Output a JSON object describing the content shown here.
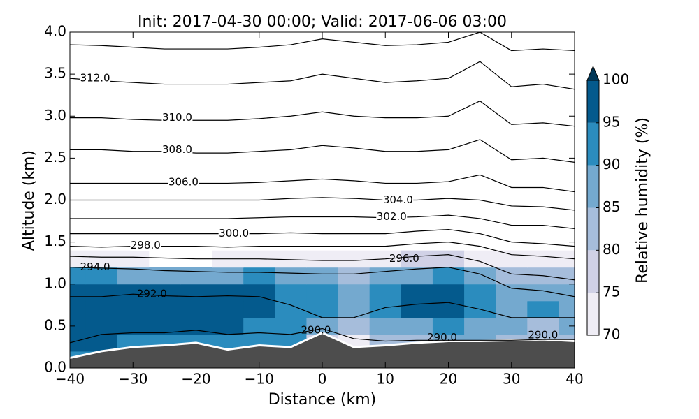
{
  "chart_data": {
    "type": "contour",
    "title": "Init: 2017-04-30 00:00; Valid: 2017-06-06 03:00",
    "x_label": "Distance (km)",
    "y_label": "Altitude (km)",
    "xlim": [
      -40,
      40
    ],
    "ylim": [
      0,
      4
    ],
    "xticks": [
      {
        "value": -40,
        "label": "−40"
      },
      {
        "value": -30,
        "label": "−30"
      },
      {
        "value": -20,
        "label": "−20"
      },
      {
        "value": -10,
        "label": "−10"
      },
      0,
      10,
      20,
      30,
      40
    ],
    "yticks": [
      {
        "value": 0,
        "label": "0.0"
      },
      0.5,
      {
        "value": 1,
        "label": "1.0"
      },
      1.5,
      {
        "value": 2,
        "label": "2.0"
      },
      2.5,
      {
        "value": 3,
        "label": "3.0"
      },
      3.5,
      {
        "value": 4,
        "label": "4.0"
      }
    ],
    "x": [
      -40,
      -35,
      -30,
      -25,
      -20,
      -15,
      -10,
      -5,
      0,
      5,
      10,
      15,
      20,
      25,
      30,
      35,
      40
    ],
    "humidity": {
      "z": [
        0.1,
        0.3,
        0.5,
        0.7,
        0.9,
        1.1,
        1.3
      ],
      "values": [
        [
          93,
          92,
          91,
          90,
          90,
          92,
          90,
          88,
          80,
          80,
          82,
          84,
          85,
          86,
          86,
          85,
          85
        ],
        [
          96,
          95,
          93,
          92,
          94,
          93,
          92,
          90,
          78,
          74,
          80,
          84,
          86,
          85,
          84,
          84,
          84
        ],
        [
          96,
          96,
          95,
          96,
          95,
          95,
          94,
          92,
          86,
          83,
          86,
          88,
          90,
          88,
          86,
          84,
          86
        ],
        [
          97,
          96,
          97,
          95,
          96,
          95,
          95,
          93,
          91,
          86,
          92,
          95,
          96,
          91,
          88,
          90,
          88
        ],
        [
          96,
          97,
          95,
          96,
          95,
          96,
          95,
          94,
          92,
          88,
          94,
          96,
          97,
          94,
          89,
          87,
          86
        ],
        [
          92,
          90,
          88,
          86,
          86,
          88,
          90,
          88,
          86,
          84,
          86,
          88,
          90,
          86,
          82,
          80,
          80
        ],
        [
          72,
          71,
          70,
          68,
          68,
          70,
          71,
          72,
          72,
          73,
          74,
          75,
          76,
          74,
          71,
          72,
          71
        ]
      ]
    },
    "terrain": {
      "color": "#4d4d4d",
      "values": [
        0.12,
        0.2,
        0.25,
        0.27,
        0.3,
        0.22,
        0.27,
        0.25,
        0.42,
        0.25,
        0.27,
        0.3,
        0.32,
        0.32,
        0.33,
        0.34,
        0.32
      ]
    },
    "isentropes": [
      {
        "level": 290,
        "values": [
          0.3,
          0.4,
          0.42,
          0.42,
          0.45,
          0.4,
          0.42,
          0.4,
          0.47,
          0.35,
          0.32,
          0.33,
          0.33,
          0.33,
          0.33,
          0.34,
          0.34
        ]
      },
      {
        "level": 292,
        "values": [
          0.85,
          0.85,
          0.88,
          0.86,
          0.85,
          0.86,
          0.85,
          0.75,
          0.6,
          0.6,
          0.72,
          0.76,
          0.78,
          0.7,
          0.6,
          0.6,
          0.6
        ]
      },
      {
        "level": 294,
        "values": [
          1.2,
          1.19,
          1.18,
          1.16,
          1.15,
          1.14,
          1.14,
          1.13,
          1.12,
          1.12,
          1.15,
          1.18,
          1.2,
          1.12,
          0.95,
          0.92,
          0.85
        ]
      },
      {
        "level": 296,
        "values": [
          1.33,
          1.32,
          1.32,
          1.31,
          1.3,
          1.3,
          1.3,
          1.29,
          1.28,
          1.28,
          1.3,
          1.33,
          1.35,
          1.27,
          1.12,
          1.1,
          1.05
        ]
      },
      {
        "level": 298,
        "values": [
          1.45,
          1.44,
          1.45,
          1.45,
          1.45,
          1.44,
          1.45,
          1.45,
          1.45,
          1.45,
          1.45,
          1.48,
          1.5,
          1.45,
          1.35,
          1.33,
          1.3
        ]
      },
      {
        "level": 300,
        "values": [
          1.6,
          1.6,
          1.6,
          1.6,
          1.6,
          1.6,
          1.6,
          1.61,
          1.6,
          1.6,
          1.6,
          1.63,
          1.65,
          1.6,
          1.5,
          1.48,
          1.45
        ]
      },
      {
        "level": 302,
        "values": [
          1.78,
          1.78,
          1.78,
          1.78,
          1.78,
          1.78,
          1.79,
          1.8,
          1.8,
          1.8,
          1.79,
          1.8,
          1.82,
          1.78,
          1.7,
          1.7,
          1.66
        ]
      },
      {
        "level": 304,
        "values": [
          2.0,
          2.0,
          2.0,
          2.0,
          2.0,
          2.0,
          2.0,
          2.02,
          2.03,
          2.02,
          2.0,
          2.0,
          2.02,
          2.0,
          1.93,
          1.92,
          1.88
        ]
      },
      {
        "level": 306,
        "values": [
          2.2,
          2.2,
          2.2,
          2.2,
          2.2,
          2.2,
          2.21,
          2.23,
          2.25,
          2.23,
          2.2,
          2.2,
          2.22,
          2.3,
          2.15,
          2.15,
          2.1
        ]
      },
      {
        "level": 308,
        "values": [
          2.6,
          2.6,
          2.58,
          2.58,
          2.56,
          2.56,
          2.58,
          2.6,
          2.65,
          2.62,
          2.58,
          2.58,
          2.6,
          2.72,
          2.48,
          2.5,
          2.45
        ]
      },
      {
        "level": 310,
        "values": [
          2.98,
          2.98,
          2.96,
          2.95,
          2.95,
          2.95,
          2.97,
          3.0,
          3.05,
          3.0,
          2.98,
          2.98,
          3.0,
          3.18,
          2.9,
          2.92,
          2.88
        ]
      },
      {
        "level": 312,
        "values": [
          3.45,
          3.42,
          3.4,
          3.38,
          3.38,
          3.38,
          3.4,
          3.42,
          3.5,
          3.45,
          3.4,
          3.42,
          3.45,
          3.65,
          3.35,
          3.38,
          3.32
        ]
      },
      {
        "level": 314,
        "values": [
          3.85,
          3.84,
          3.82,
          3.8,
          3.8,
          3.8,
          3.82,
          3.85,
          3.92,
          3.88,
          3.84,
          3.85,
          3.88,
          4.0,
          3.78,
          3.8,
          3.78
        ]
      }
    ],
    "contour_labels": [
      {
        "text": "290.0",
        "value": 290,
        "x": -1,
        "y": 0.45
      },
      {
        "text": "290.0",
        "value": 290,
        "x": 19,
        "y": 0.36
      },
      {
        "text": "290.0",
        "value": 290,
        "x": 35,
        "y": 0.39
      },
      {
        "text": "292.0",
        "value": 292,
        "x": -27,
        "y": 0.88
      },
      {
        "text": "294.0",
        "value": 294,
        "x": -36,
        "y": 1.2
      },
      {
        "text": "296.0",
        "value": 296,
        "x": 13,
        "y": 1.3
      },
      {
        "text": "298.0",
        "value": 298,
        "x": -28,
        "y": 1.46
      },
      {
        "text": "300.0",
        "value": 300,
        "x": -14,
        "y": 1.6
      },
      {
        "text": "302.0",
        "value": 302,
        "x": 11,
        "y": 1.8
      },
      {
        "text": "304.0",
        "value": 304,
        "x": 12,
        "y": 2.0
      },
      {
        "text": "306.0",
        "value": 306,
        "x": -22,
        "y": 2.21
      },
      {
        "text": "308.0",
        "value": 308,
        "x": -23,
        "y": 2.6
      },
      {
        "text": "310.0",
        "value": 310,
        "x": -23,
        "y": 2.98
      },
      {
        "text": "312.0",
        "value": 312,
        "x": -36,
        "y": 3.45
      }
    ],
    "colorbar": {
      "label": "Relative humidity (%)",
      "levels": [
        70,
        75,
        80,
        85,
        90,
        95,
        100
      ],
      "colors": [
        "#efedf5",
        "#d0d1e6",
        "#a6bddb",
        "#74a9cf",
        "#2b8cbe",
        "#045a8d"
      ],
      "over_color": "#023858"
    }
  }
}
